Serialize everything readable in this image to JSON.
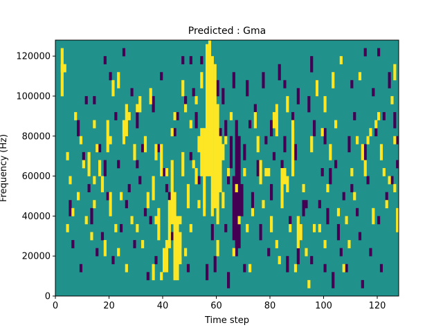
{
  "chart_data": {
    "type": "heatmap",
    "title": "Predicted : Gma",
    "xlabel": "Time step",
    "ylabel": "Frequency (Hz)",
    "xlim": [
      0,
      128
    ],
    "ylim": [
      0,
      128000
    ],
    "x_ticks": [
      0,
      20,
      40,
      60,
      80,
      100,
      120
    ],
    "x_tick_labels": [
      "0",
      "20",
      "40",
      "60",
      "80",
      "100",
      "120"
    ],
    "y_ticks": [
      0,
      20000,
      40000,
      60000,
      80000,
      100000,
      120000
    ],
    "y_tick_labels": [
      "0",
      "20000",
      "40000",
      "60000",
      "80000",
      "100000",
      "120000"
    ],
    "grid": false,
    "colormap": "viridis",
    "n_time_steps": 128,
    "n_frequency_bins": 64,
    "bin_height_hz": 2000,
    "levels": {
      "low": 0,
      "mid": 0.5,
      "high": 1
    },
    "level_colors": {
      "low": "#440154",
      "mid": "#21918c",
      "high": "#fde725"
    },
    "background_level": "mid",
    "high_cells": [
      [
        56,
        30,
        63
      ],
      [
        57,
        30,
        64
      ],
      [
        58,
        20,
        60
      ],
      [
        59,
        22,
        58
      ],
      [
        60,
        18,
        48
      ],
      [
        55,
        20,
        42
      ],
      [
        54,
        30,
        42
      ],
      [
        61,
        26,
        40
      ],
      [
        44,
        4,
        26
      ],
      [
        45,
        4,
        20
      ],
      [
        46,
        8,
        16
      ],
      [
        40,
        6,
        12
      ],
      [
        41,
        6,
        14
      ],
      [
        42,
        12,
        24
      ],
      [
        43,
        18,
        34
      ],
      [
        38,
        14,
        22
      ],
      [
        39,
        30,
        38
      ],
      [
        2,
        50,
        58
      ],
      [
        2,
        56,
        60
      ],
      [
        18,
        10,
        14
      ],
      [
        19,
        36,
        44
      ],
      [
        20,
        20,
        26
      ],
      [
        21,
        50,
        54
      ],
      [
        25,
        38,
        44
      ],
      [
        26,
        40,
        48
      ],
      [
        31,
        46,
        50
      ],
      [
        36,
        24,
        30
      ],
      [
        37,
        34,
        38
      ],
      [
        47,
        30,
        36
      ],
      [
        49,
        22,
        28
      ],
      [
        52,
        28,
        32
      ],
      [
        53,
        36,
        40
      ],
      [
        76,
        28,
        34
      ],
      [
        78,
        30,
        32
      ],
      [
        80,
        16,
        20
      ],
      [
        82,
        40,
        48
      ],
      [
        84,
        22,
        32
      ],
      [
        85,
        28,
        32
      ],
      [
        86,
        46,
        50
      ],
      [
        88,
        30,
        44
      ],
      [
        90,
        12,
        20
      ],
      [
        91,
        14,
        18
      ],
      [
        94,
        2,
        4
      ],
      [
        96,
        16,
        18
      ],
      [
        103,
        52,
        56
      ],
      [
        104,
        42,
        44
      ],
      [
        106,
        58,
        60
      ],
      [
        112,
        38,
        40
      ],
      [
        114,
        34,
        38
      ],
      [
        117,
        40,
        42
      ],
      [
        118,
        18,
        22
      ],
      [
        119,
        42,
        44
      ],
      [
        123,
        22,
        24
      ],
      [
        126,
        54,
        58
      ],
      [
        127,
        16,
        22
      ],
      [
        2,
        60,
        62
      ],
      [
        3,
        56,
        58
      ],
      [
        7,
        44,
        46
      ],
      [
        9,
        38,
        40
      ],
      [
        10,
        32,
        34
      ],
      [
        12,
        30,
        36
      ],
      [
        14,
        42,
        44
      ],
      [
        15,
        36,
        38
      ],
      [
        16,
        30,
        34
      ],
      [
        17,
        26,
        30
      ],
      [
        20,
        38,
        40
      ],
      [
        23,
        52,
        56
      ],
      [
        24,
        24,
        26
      ],
      [
        27,
        44,
        46
      ],
      [
        29,
        34,
        38
      ],
      [
        33,
        36,
        40
      ],
      [
        35,
        48,
        52
      ],
      [
        41,
        30,
        32
      ],
      [
        43,
        40,
        42
      ],
      [
        44,
        44,
        46
      ],
      [
        47,
        50,
        54
      ],
      [
        48,
        46,
        48
      ],
      [
        50,
        42,
        44
      ],
      [
        51,
        32,
        34
      ],
      [
        52,
        48,
        50
      ],
      [
        53,
        22,
        24
      ],
      [
        62,
        34,
        38
      ],
      [
        63,
        38,
        40
      ],
      [
        64,
        30,
        32
      ],
      [
        65,
        44,
        46
      ],
      [
        74,
        42,
        46
      ],
      [
        75,
        36,
        40
      ],
      [
        77,
        22,
        24
      ],
      [
        79,
        30,
        32
      ],
      [
        81,
        42,
        46
      ],
      [
        86,
        26,
        30
      ],
      [
        92,
        26,
        28
      ],
      [
        95,
        36,
        40
      ],
      [
        97,
        50,
        54
      ],
      [
        99,
        40,
        42
      ],
      [
        101,
        26,
        28
      ],
      [
        102,
        34,
        38
      ],
      [
        108,
        18,
        20
      ],
      [
        110,
        30,
        32
      ],
      [
        111,
        24,
        26
      ],
      [
        113,
        54,
        56
      ],
      [
        115,
        30,
        34
      ],
      [
        116,
        38,
        40
      ],
      [
        120,
        44,
        46
      ],
      [
        121,
        34,
        38
      ],
      [
        122,
        30,
        32
      ],
      [
        124,
        28,
        30
      ],
      [
        125,
        48,
        50
      ],
      [
        126,
        38,
        40
      ],
      [
        4,
        16,
        18
      ],
      [
        4,
        34,
        36
      ],
      [
        5,
        28,
        30
      ],
      [
        6,
        20,
        22
      ],
      [
        8,
        24,
        26
      ],
      [
        11,
        18,
        20
      ],
      [
        13,
        14,
        16
      ],
      [
        14,
        22,
        24
      ],
      [
        22,
        16,
        18
      ],
      [
        23,
        10,
        12
      ],
      [
        26,
        6,
        8
      ],
      [
        28,
        18,
        20
      ],
      [
        30,
        16,
        18
      ],
      [
        32,
        12,
        14
      ],
      [
        34,
        22,
        26
      ],
      [
        36,
        4,
        8
      ],
      [
        37,
        18,
        20
      ],
      [
        39,
        4,
        6
      ],
      [
        46,
        18,
        20
      ],
      [
        48,
        10,
        12
      ],
      [
        50,
        16,
        18
      ],
      [
        66,
        10,
        12
      ],
      [
        67,
        26,
        28
      ],
      [
        68,
        18,
        20
      ],
      [
        70,
        30,
        32
      ],
      [
        71,
        16,
        18
      ],
      [
        72,
        6,
        8
      ],
      [
        73,
        20,
        22
      ],
      [
        82,
        12,
        14
      ],
      [
        83,
        8,
        10
      ],
      [
        87,
        16,
        18
      ],
      [
        89,
        6,
        8
      ],
      [
        93,
        10,
        12
      ],
      [
        98,
        16,
        18
      ],
      [
        100,
        12,
        14
      ],
      [
        105,
        20,
        22
      ],
      [
        107,
        6,
        8
      ],
      [
        109,
        12,
        14
      ],
      [
        14,
        28,
        30
      ],
      [
        30,
        46,
        48
      ],
      [
        100,
        46,
        50
      ],
      [
        126,
        26,
        28
      ],
      [
        60,
        10,
        14
      ],
      [
        62,
        22,
        26
      ],
      [
        56,
        46,
        50
      ],
      [
        54,
        52,
        56
      ]
    ],
    "low_cells": [
      [
        67,
        10,
        44
      ],
      [
        68,
        12,
        40
      ],
      [
        66,
        14,
        30
      ],
      [
        65,
        32,
        40
      ],
      [
        69,
        20,
        28
      ],
      [
        64,
        28,
        32
      ],
      [
        70,
        34,
        38
      ],
      [
        63,
        40,
        44
      ],
      [
        82,
        44,
        48
      ],
      [
        83,
        54,
        58
      ],
      [
        84,
        30,
        34
      ],
      [
        86,
        6,
        10
      ],
      [
        87,
        16,
        20
      ],
      [
        89,
        34,
        38
      ],
      [
        90,
        8,
        12
      ],
      [
        91,
        14,
        18
      ],
      [
        92,
        20,
        24
      ],
      [
        94,
        46,
        50
      ],
      [
        95,
        8,
        10
      ],
      [
        96,
        40,
        44
      ],
      [
        97,
        50,
        54
      ],
      [
        98,
        22,
        24
      ],
      [
        100,
        38,
        42
      ],
      [
        101,
        18,
        22
      ],
      [
        102,
        28,
        32
      ],
      [
        103,
        2,
        6
      ],
      [
        104,
        32,
        34
      ],
      [
        105,
        14,
        18
      ],
      [
        106,
        10,
        12
      ],
      [
        107,
        24,
        26
      ],
      [
        108,
        6,
        8
      ],
      [
        109,
        36,
        40
      ],
      [
        110,
        26,
        28
      ],
      [
        111,
        44,
        46
      ],
      [
        112,
        20,
        22
      ],
      [
        113,
        14,
        16
      ],
      [
        114,
        2,
        4
      ],
      [
        115,
        34,
        38
      ],
      [
        116,
        28,
        30
      ],
      [
        117,
        10,
        12
      ],
      [
        118,
        50,
        52
      ],
      [
        119,
        40,
        42
      ],
      [
        120,
        18,
        20
      ],
      [
        121,
        6,
        8
      ],
      [
        122,
        44,
        46
      ],
      [
        123,
        24,
        26
      ],
      [
        124,
        52,
        56
      ],
      [
        125,
        28,
        30
      ],
      [
        126,
        42,
        46
      ],
      [
        127,
        32,
        34
      ],
      [
        5,
        20,
        24
      ],
      [
        6,
        12,
        14
      ],
      [
        8,
        40,
        44
      ],
      [
        10,
        34,
        36
      ],
      [
        12,
        26,
        28
      ],
      [
        14,
        48,
        50
      ],
      [
        16,
        36,
        38
      ],
      [
        18,
        30,
        34
      ],
      [
        22,
        44,
        46
      ],
      [
        25,
        38,
        40
      ],
      [
        26,
        22,
        24
      ],
      [
        28,
        50,
        52
      ],
      [
        30,
        42,
        46
      ],
      [
        31,
        28,
        30
      ],
      [
        33,
        20,
        22
      ],
      [
        36,
        46,
        50
      ],
      [
        38,
        36,
        38
      ],
      [
        40,
        30,
        32
      ],
      [
        42,
        24,
        26
      ],
      [
        44,
        40,
        42
      ],
      [
        48,
        48,
        50
      ],
      [
        50,
        34,
        36
      ],
      [
        52,
        42,
        46
      ],
      [
        53,
        28,
        30
      ],
      [
        55,
        20,
        22
      ],
      [
        58,
        14,
        18
      ],
      [
        59,
        6,
        10
      ],
      [
        60,
        50,
        54
      ],
      [
        61,
        40,
        42
      ],
      [
        62,
        48,
        52
      ],
      [
        63,
        16,
        18
      ],
      [
        71,
        50,
        54
      ],
      [
        72,
        42,
        44
      ],
      [
        73,
        22,
        26
      ],
      [
        74,
        46,
        48
      ],
      [
        75,
        30,
        34
      ],
      [
        76,
        14,
        18
      ],
      [
        77,
        52,
        56
      ],
      [
        78,
        38,
        40
      ],
      [
        79,
        10,
        12
      ],
      [
        80,
        40,
        44
      ],
      [
        81,
        34,
        36
      ],
      [
        85,
        52,
        54
      ],
      [
        88,
        42,
        46
      ],
      [
        93,
        22,
        24
      ],
      [
        99,
        30,
        32
      ],
      [
        127,
        38,
        40
      ],
      [
        9,
        6,
        8
      ],
      [
        11,
        48,
        50
      ],
      [
        13,
        18,
        22
      ],
      [
        15,
        10,
        12
      ],
      [
        17,
        14,
        16
      ],
      [
        19,
        24,
        26
      ],
      [
        20,
        54,
        56
      ],
      [
        21,
        8,
        10
      ],
      [
        23,
        32,
        34
      ],
      [
        24,
        16,
        18
      ],
      [
        27,
        26,
        28
      ],
      [
        29,
        12,
        14
      ],
      [
        32,
        36,
        38
      ],
      [
        34,
        4,
        6
      ],
      [
        35,
        18,
        20
      ],
      [
        37,
        8,
        10
      ],
      [
        39,
        54,
        56
      ],
      [
        41,
        26,
        28
      ],
      [
        43,
        14,
        16
      ],
      [
        45,
        44,
        46
      ],
      [
        46,
        10,
        12
      ],
      [
        47,
        58,
        60
      ],
      [
        49,
        6,
        8
      ],
      [
        51,
        50,
        52
      ],
      [
        54,
        58,
        60
      ],
      [
        56,
        4,
        8
      ],
      [
        57,
        52,
        54
      ],
      [
        18,
        58,
        60
      ],
      [
        25,
        60,
        62
      ],
      [
        30,
        32,
        34
      ],
      [
        45,
        16,
        18
      ],
      [
        50,
        58,
        60
      ],
      [
        64,
        2,
        6
      ],
      [
        66,
        52,
        56
      ],
      [
        70,
        6,
        8
      ],
      [
        80,
        24,
        28
      ],
      [
        85,
        36,
        40
      ],
      [
        90,
        48,
        52
      ],
      [
        95,
        56,
        60
      ],
      [
        100,
        6,
        8
      ],
      [
        110,
        52,
        54
      ],
      [
        115,
        60,
        62
      ],
      [
        120,
        60,
        62
      ]
    ]
  }
}
